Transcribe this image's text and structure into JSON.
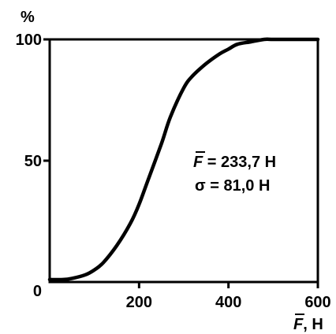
{
  "chart_data": {
    "type": "line",
    "title": "",
    "ylabel": "%",
    "xlabel_symbol": "F",
    "xlabel_unit": ", H",
    "xlim": [
      0,
      600
    ],
    "ylim": [
      0,
      100
    ],
    "x_ticks": [
      200,
      400,
      600
    ],
    "x_tick_labels": [
      "200",
      "400",
      "600"
    ],
    "y_ticks": [
      0,
      50,
      100
    ],
    "y_tick_labels": [
      "0",
      "50",
      "100"
    ],
    "grid": false,
    "legend": "none",
    "series": [
      {
        "x": [
          0,
          30,
          50,
          80,
          100,
          120,
          150,
          180,
          200,
          220,
          250,
          270,
          300,
          320,
          350,
          380,
          400,
          420,
          450,
          480,
          500,
          550,
          600
        ],
        "y": [
          1,
          1,
          1.5,
          3,
          5,
          8,
          15,
          24,
          32,
          42,
          57,
          68,
          80,
          85,
          90,
          94,
          96,
          98,
          99,
          100,
          100,
          100,
          100
        ]
      }
    ],
    "annotations": {
      "mean_symbol": "F",
      "mean_value": " = 233,7 H",
      "sigma_text": "σ = 81,0 H"
    },
    "colors": {
      "line": "#000000",
      "axis": "#000000"
    }
  }
}
